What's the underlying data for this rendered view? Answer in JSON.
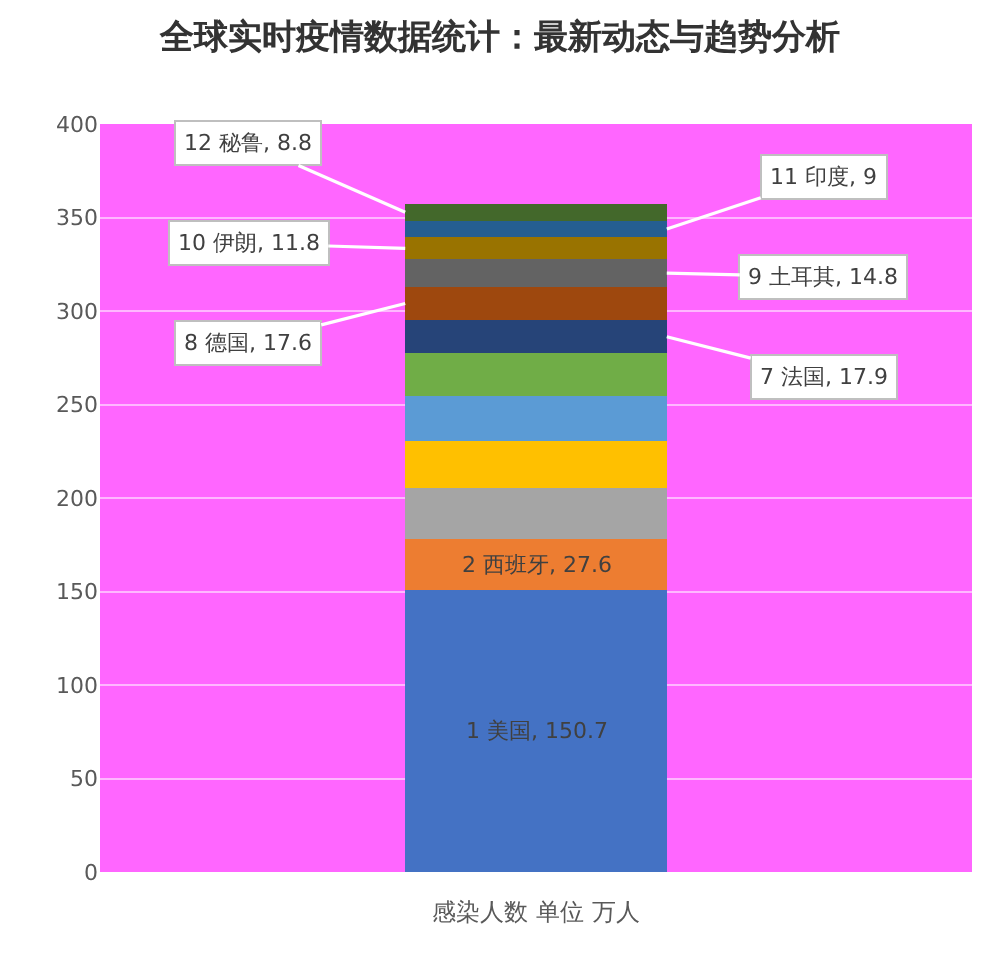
{
  "chart_data": {
    "type": "bar",
    "title": "全球实时疫情数据统计：最新动态与趋势分析",
    "xlabel": "感染人数 单位 万人",
    "categories": [
      null
    ],
    "stacked": true,
    "ylim": [
      0,
      400
    ],
    "yticks": [
      0,
      50,
      100,
      150,
      200,
      250,
      300,
      350,
      400
    ],
    "grid": "y",
    "series": [
      {
        "color": "#4472c4",
        "values": [
          150.7
        ],
        "value_labels": [
          "1 美国, 150.7"
        ]
      },
      {
        "color": "#ed7d31",
        "values": [
          27.6
        ],
        "value_labels": [
          "2 西班牙, 27.6"
        ]
      },
      {
        "color": "#a5a5a5",
        "values": [
          27
        ]
      },
      {
        "color": "#ffc000",
        "values": [
          25
        ]
      },
      {
        "color": "#5b9bd5",
        "values": [
          24
        ]
      },
      {
        "color": "#70ad47",
        "values": [
          23
        ]
      },
      {
        "color": "#264478",
        "values": [
          17.9
        ],
        "value_labels": [
          "7 法国, 17.9"
        ]
      },
      {
        "color": "#9e480e",
        "values": [
          17.6
        ],
        "value_labels": [
          "8 德国, 17.6"
        ]
      },
      {
        "color": "#636363",
        "values": [
          14.8
        ],
        "value_labels": [
          "9 土耳其, 14.8"
        ]
      },
      {
        "color": "#997300",
        "values": [
          11.8
        ],
        "value_labels": [
          "10 伊朗, 11.8"
        ]
      },
      {
        "color": "#255e91",
        "values": [
          9
        ],
        "value_labels": [
          "11 印度, 9"
        ]
      },
      {
        "color": "#43682b",
        "values": [
          8.8
        ],
        "value_labels": [
          "12 秘鲁, 8.8"
        ]
      }
    ]
  }
}
